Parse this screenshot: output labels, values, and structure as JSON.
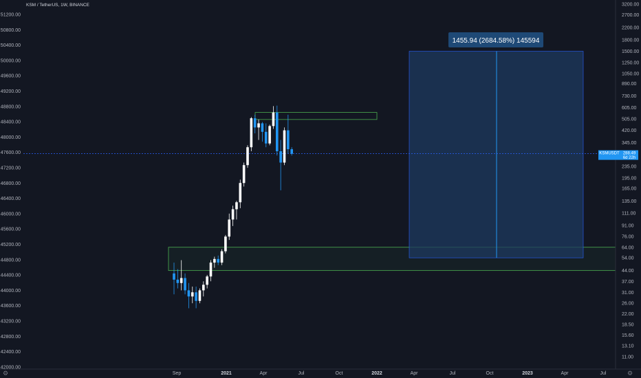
{
  "header": {
    "title": "KSM / TetherUS, 1W, BINANCE"
  },
  "colors": {
    "background": "#131722",
    "bull": "#ffffff",
    "bear": "#2196f3",
    "measure_fill": "#1e3a5f",
    "measure_line": "#2962ff",
    "zone_green": "#4caf50",
    "price_line": "#2962ff"
  },
  "axes": {
    "left_ticks": [
      "51200.00",
      "50800.00",
      "50400.00",
      "50000.00",
      "49600.00",
      "49200.00",
      "48800.00",
      "48400.00",
      "48000.00",
      "47600.00",
      "47200.00",
      "46800.00",
      "46400.00",
      "46000.00",
      "45600.00",
      "45200.00",
      "44800.00",
      "44400.00",
      "44000.00",
      "43600.00",
      "43200.00",
      "42800.00",
      "42400.00",
      "42000.00"
    ],
    "right_ticks": [
      "3200.00",
      "2700.00",
      "2200.00",
      "1800.00",
      "1500.00",
      "1250.00",
      "1050.00",
      "890.00",
      "730.00",
      "605.00",
      "505.00",
      "420.00",
      "345.00",
      "285.00",
      "235.00",
      "195.00",
      "165.00",
      "135.00",
      "111.00",
      "91.00",
      "76.00",
      "64.00",
      "54.00",
      "44.00",
      "37.00",
      "31.00",
      "26.00",
      "22.00",
      "18.50",
      "15.60",
      "13.10",
      "11.00"
    ],
    "time_ticks": [
      {
        "label": "Sep",
        "strong": false
      },
      {
        "label": "2021",
        "strong": true
      },
      {
        "label": "Apr",
        "strong": false
      },
      {
        "label": "Jul",
        "strong": false
      },
      {
        "label": "Oct",
        "strong": false
      },
      {
        "label": "2022",
        "strong": true
      },
      {
        "label": "Apr",
        "strong": false
      },
      {
        "label": "Jul",
        "strong": false
      },
      {
        "label": "Oct",
        "strong": false
      },
      {
        "label": "2023",
        "strong": true
      },
      {
        "label": "Apr",
        "strong": false
      },
      {
        "label": "Jul",
        "strong": false
      }
    ]
  },
  "price_badge": {
    "symbol": "KSMUSDT",
    "price": "288.49",
    "countdown": "6d 22h"
  },
  "measure": {
    "label": "1455.94 (2684.58%) 145594"
  },
  "chart_data": {
    "type": "candlestick",
    "title": "KSM / TetherUS, 1W, BINANCE",
    "interval": "1W",
    "y_scale": "log",
    "ylim": [
      11,
      3200
    ],
    "candles": [
      {
        "o": 42,
        "h": 50,
        "l": 30,
        "c": 38
      },
      {
        "o": 38,
        "h": 45,
        "l": 33,
        "c": 36
      },
      {
        "o": 36,
        "h": 52,
        "l": 32,
        "c": 39
      },
      {
        "o": 39,
        "h": 42,
        "l": 30,
        "c": 32
      },
      {
        "o": 32,
        "h": 36,
        "l": 24,
        "c": 29
      },
      {
        "o": 29,
        "h": 34,
        "l": 26,
        "c": 31
      },
      {
        "o": 31,
        "h": 34,
        "l": 24,
        "c": 27
      },
      {
        "o": 27,
        "h": 33,
        "l": 26,
        "c": 32
      },
      {
        "o": 32,
        "h": 37,
        "l": 29,
        "c": 35
      },
      {
        "o": 35,
        "h": 41,
        "l": 33,
        "c": 40
      },
      {
        "o": 40,
        "h": 52,
        "l": 37,
        "c": 50
      },
      {
        "o": 50,
        "h": 55,
        "l": 46,
        "c": 53
      },
      {
        "o": 53,
        "h": 56,
        "l": 48,
        "c": 50
      },
      {
        "o": 50,
        "h": 62,
        "l": 48,
        "c": 60
      },
      {
        "o": 60,
        "h": 78,
        "l": 58,
        "c": 76
      },
      {
        "o": 76,
        "h": 110,
        "l": 72,
        "c": 100
      },
      {
        "o": 100,
        "h": 125,
        "l": 90,
        "c": 118
      },
      {
        "o": 118,
        "h": 135,
        "l": 100,
        "c": 132
      },
      {
        "o": 132,
        "h": 190,
        "l": 120,
        "c": 180
      },
      {
        "o": 180,
        "h": 250,
        "l": 170,
        "c": 240
      },
      {
        "o": 240,
        "h": 330,
        "l": 230,
        "c": 320
      },
      {
        "o": 320,
        "h": 520,
        "l": 300,
        "c": 510
      },
      {
        "o": 510,
        "h": 540,
        "l": 400,
        "c": 440
      },
      {
        "o": 440,
        "h": 500,
        "l": 360,
        "c": 470
      },
      {
        "o": 470,
        "h": 480,
        "l": 350,
        "c": 410
      },
      {
        "o": 410,
        "h": 470,
        "l": 320,
        "c": 340
      },
      {
        "o": 340,
        "h": 460,
        "l": 330,
        "c": 450
      },
      {
        "o": 450,
        "h": 620,
        "l": 430,
        "c": 560
      },
      {
        "o": 560,
        "h": 625,
        "l": 280,
        "c": 300
      },
      {
        "o": 300,
        "h": 360,
        "l": 160,
        "c": 250
      },
      {
        "o": 250,
        "h": 440,
        "l": 240,
        "c": 420
      },
      {
        "o": 420,
        "h": 540,
        "l": 290,
        "c": 310
      },
      {
        "o": 310,
        "h": 320,
        "l": 280,
        "c": 288
      }
    ],
    "last_price": 288.49,
    "resistance_zone": [
      500,
      560
    ],
    "support_zone": [
      44,
      64
    ],
    "measure": {
      "from": 54,
      "to": 1500,
      "change": 1455.94,
      "percent": 2684.58,
      "value": 145594
    }
  }
}
